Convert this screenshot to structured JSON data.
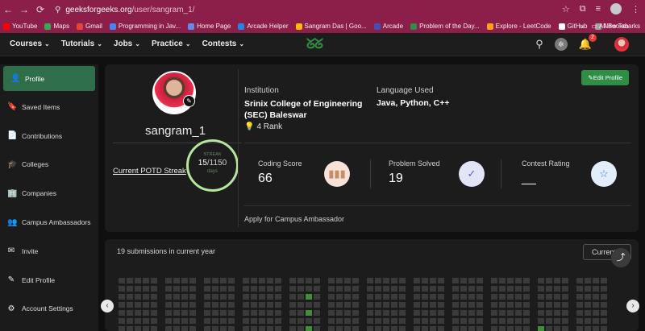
{
  "browser": {
    "url_host": "geeksforgeeks.org",
    "url_path": "/user/sangram_1/",
    "bookmarks": [
      {
        "label": "YouTube",
        "color": "#ff0000"
      },
      {
        "label": "Maps",
        "color": "#34a853"
      },
      {
        "label": "Gmail",
        "color": "#ea4335"
      },
      {
        "label": "Programming in Jav...",
        "color": "#4285f4"
      },
      {
        "label": "Home Page",
        "color": "#5b8def"
      },
      {
        "label": "Arcade Helper",
        "color": "#1e88e5"
      },
      {
        "label": "Sangram Das | Goo...",
        "color": "#fbbc05"
      },
      {
        "label": "Arcade",
        "color": "#3f51b5"
      },
      {
        "label": "Problem of the Day...",
        "color": "#2f8d46"
      },
      {
        "label": "Explore - LeetCode",
        "color": "#ffa116"
      },
      {
        "label": "GitHub",
        "color": "#ffffff"
      },
      {
        "label": "New Tab",
        "color": "#9e9e9e"
      }
    ],
    "all_bookmarks": "All Bookmarks",
    "more_bookmarks": "»"
  },
  "header": {
    "nav": [
      "Courses",
      "Tutorials",
      "Jobs",
      "Practice",
      "Contests"
    ],
    "logo": "ᘜᘜ",
    "notification_count": "2"
  },
  "sidebar": {
    "items": [
      {
        "label": "Profile",
        "icon": "person-icon",
        "glyph": "👤"
      },
      {
        "label": "Saved Items",
        "icon": "bookmark-icon",
        "glyph": "🔖"
      },
      {
        "label": "Contributions",
        "icon": "document-icon",
        "glyph": "📄"
      },
      {
        "label": "Colleges",
        "icon": "graduation-cap-icon",
        "glyph": "🎓"
      },
      {
        "label": "Companies",
        "icon": "building-icon",
        "glyph": "🏢"
      },
      {
        "label": "Campus Ambassadors",
        "icon": "group-icon",
        "glyph": "👥"
      },
      {
        "label": "Invite",
        "icon": "mail-icon",
        "glyph": "✉"
      },
      {
        "label": "Edit Profile",
        "icon": "pencil-icon",
        "glyph": "✎"
      },
      {
        "label": "Account Settings",
        "icon": "gear-icon",
        "glyph": "⚙"
      }
    ]
  },
  "profile": {
    "username": "sangram_1",
    "potd_link": "Current POTD Streak",
    "streak_label": "STREAK",
    "streak_current": "15",
    "streak_total": "/1150",
    "streak_unit": "days",
    "institution_label": "Institution",
    "institution_value": "Srinix College of Engineering (SEC) Baleswar",
    "rank_text": "4 Rank",
    "language_label": "Language Used",
    "language_value": "Java, Python, C++",
    "edit_button": "Edit Profile",
    "stats": [
      {
        "label": "Coding Score",
        "value": "66",
        "icon": "bar-chart-icon",
        "glyph": "▮▮▮",
        "bg": "#f6e2d6",
        "fg": "#c78d6a"
      },
      {
        "label": "Problem Solved",
        "value": "19",
        "icon": "check-circle-icon",
        "glyph": "✓",
        "bg": "#e1e5f6",
        "fg": "#5564b8"
      },
      {
        "label": "Contest Rating",
        "value": "__",
        "icon": "star-icon",
        "glyph": "☆",
        "bg": "#e3eefb",
        "fg": "#3c78c8"
      }
    ],
    "ambassador_link": "Apply for Campus Ambassador"
  },
  "activity": {
    "submissions_text": "19 submissions in current year",
    "year_button": "Current"
  }
}
